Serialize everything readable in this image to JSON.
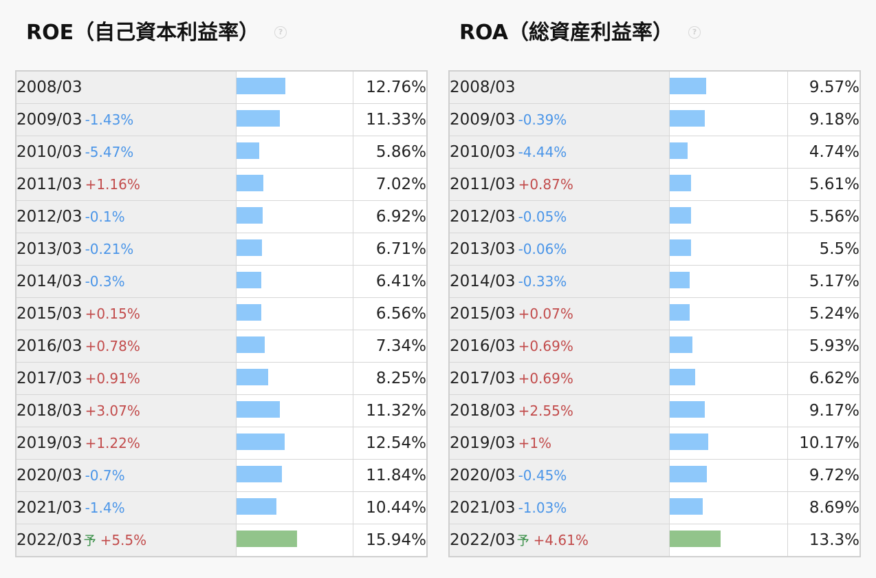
{
  "chart_data": [
    {
      "type": "table",
      "title": "ROE（自己資本利益率）",
      "forecast_mark": "予",
      "rows": [
        {
          "period": "2008/03",
          "change": "",
          "value": 12.76,
          "label": "12.76%"
        },
        {
          "period": "2009/03",
          "change": "-1.43%",
          "value": 11.33,
          "label": "11.33%"
        },
        {
          "period": "2010/03",
          "change": "-5.47%",
          "value": 5.86,
          "label": "5.86%"
        },
        {
          "period": "2011/03",
          "change": "+1.16%",
          "value": 7.02,
          "label": "7.02%"
        },
        {
          "period": "2012/03",
          "change": "-0.1%",
          "value": 6.92,
          "label": "6.92%"
        },
        {
          "period": "2013/03",
          "change": "-0.21%",
          "value": 6.71,
          "label": "6.71%"
        },
        {
          "period": "2014/03",
          "change": "-0.3%",
          "value": 6.41,
          "label": "6.41%"
        },
        {
          "period": "2015/03",
          "change": "+0.15%",
          "value": 6.56,
          "label": "6.56%"
        },
        {
          "period": "2016/03",
          "change": "+0.78%",
          "value": 7.34,
          "label": "7.34%"
        },
        {
          "period": "2017/03",
          "change": "+0.91%",
          "value": 8.25,
          "label": "8.25%"
        },
        {
          "period": "2018/03",
          "change": "+3.07%",
          "value": 11.32,
          "label": "11.32%"
        },
        {
          "period": "2019/03",
          "change": "+1.22%",
          "value": 12.54,
          "label": "12.54%"
        },
        {
          "period": "2020/03",
          "change": "-0.7%",
          "value": 11.84,
          "label": "11.84%"
        },
        {
          "period": "2021/03",
          "change": "-1.4%",
          "value": 10.44,
          "label": "10.44%"
        },
        {
          "period": "2022/03",
          "change": "+5.5%",
          "value": 15.94,
          "label": "15.94%",
          "forecast": true
        }
      ],
      "colors": {
        "bar": "#8ec8fa",
        "forecast_bar": "#92c48b",
        "up": "#c24b4b",
        "down": "#4a95e8",
        "forecast_mark": "#2f8a3e"
      }
    },
    {
      "type": "table",
      "title": "ROA（総資産利益率）",
      "forecast_mark": "予",
      "rows": [
        {
          "period": "2008/03",
          "change": "",
          "value": 9.57,
          "label": "9.57%"
        },
        {
          "period": "2009/03",
          "change": "-0.39%",
          "value": 9.18,
          "label": "9.18%"
        },
        {
          "period": "2010/03",
          "change": "-4.44%",
          "value": 4.74,
          "label": "4.74%"
        },
        {
          "period": "2011/03",
          "change": "+0.87%",
          "value": 5.61,
          "label": "5.61%"
        },
        {
          "period": "2012/03",
          "change": "-0.05%",
          "value": 5.56,
          "label": "5.56%"
        },
        {
          "period": "2013/03",
          "change": "-0.06%",
          "value": 5.5,
          "label": "5.5%"
        },
        {
          "period": "2014/03",
          "change": "-0.33%",
          "value": 5.17,
          "label": "5.17%"
        },
        {
          "period": "2015/03",
          "change": "+0.07%",
          "value": 5.24,
          "label": "5.24%"
        },
        {
          "period": "2016/03",
          "change": "+0.69%",
          "value": 5.93,
          "label": "5.93%"
        },
        {
          "period": "2017/03",
          "change": "+0.69%",
          "value": 6.62,
          "label": "6.62%"
        },
        {
          "period": "2018/03",
          "change": "+2.55%",
          "value": 9.17,
          "label": "9.17%"
        },
        {
          "period": "2019/03",
          "change": "+1%",
          "value": 10.17,
          "label": "10.17%"
        },
        {
          "period": "2020/03",
          "change": "-0.45%",
          "value": 9.72,
          "label": "9.72%"
        },
        {
          "period": "2021/03",
          "change": "-1.03%",
          "value": 8.69,
          "label": "8.69%"
        },
        {
          "period": "2022/03",
          "change": "+4.61%",
          "value": 13.3,
          "label": "13.3%",
          "forecast": true
        }
      ],
      "colors": {
        "bar": "#8ec8fa",
        "forecast_bar": "#92c48b",
        "up": "#c24b4b",
        "down": "#4a95e8",
        "forecast_mark": "#2f8a3e"
      }
    }
  ],
  "help_icon": "question-circle-icon"
}
